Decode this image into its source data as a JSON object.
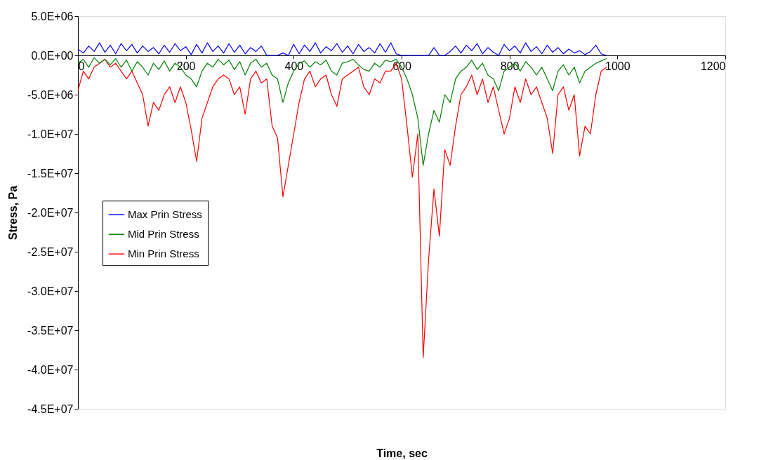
{
  "chart_data": {
    "type": "line",
    "xlabel": "Time, sec",
    "ylabel": "Stress, Pa",
    "x": [
      0,
      10,
      20,
      30,
      40,
      50,
      60,
      70,
      80,
      90,
      100,
      110,
      120,
      130,
      140,
      150,
      160,
      170,
      180,
      190,
      200,
      210,
      220,
      230,
      240,
      250,
      260,
      270,
      280,
      290,
      300,
      310,
      320,
      330,
      340,
      350,
      360,
      370,
      380,
      390,
      400,
      410,
      420,
      430,
      440,
      450,
      460,
      470,
      480,
      490,
      500,
      510,
      520,
      530,
      540,
      550,
      560,
      570,
      580,
      590,
      600,
      610,
      620,
      630,
      640,
      650,
      660,
      670,
      680,
      690,
      700,
      710,
      720,
      730,
      740,
      750,
      760,
      770,
      780,
      790,
      800,
      810,
      820,
      830,
      840,
      850,
      860,
      870,
      880,
      890,
      900,
      910,
      920,
      930,
      940,
      950,
      960,
      970,
      980
    ],
    "series": [
      {
        "name": "Max Prin Stress",
        "color": "#0000ff",
        "values": [
          800000.0,
          300000.0,
          1200000.0,
          500000.0,
          1600000.0,
          400000.0,
          1300000.0,
          200000.0,
          1500000.0,
          600000.0,
          1400000.0,
          300000.0,
          1200000.0,
          500000.0,
          1000000.0,
          200000.0,
          1300000.0,
          400000.0,
          1500000.0,
          600000.0,
          1100000.0,
          100000.0,
          1400000.0,
          300000.0,
          1600000.0,
          500000.0,
          1200000.0,
          300000.0,
          1500000.0,
          400000.0,
          1300000.0,
          200000.0,
          1000000.0,
          500000.0,
          1200000.0,
          0,
          0,
          0,
          300000.0,
          0,
          1400000.0,
          200000.0,
          1300000.0,
          500000.0,
          1600000.0,
          300000.0,
          1100000.0,
          600000.0,
          1500000.0,
          400000.0,
          1200000.0,
          200000.0,
          1400000.0,
          500000.0,
          1000000.0,
          300000.0,
          1500000.0,
          400000.0,
          1600000.0,
          200000.0,
          0,
          0,
          0,
          0,
          0,
          0,
          1000000.0,
          0,
          0,
          500000.0,
          1200000.0,
          300000.0,
          1300000.0,
          600000.0,
          1500000.0,
          200000.0,
          1000000.0,
          400000.0,
          0,
          1400000.0,
          600000.0,
          1200000.0,
          300000.0,
          1600000.0,
          500000.0,
          1100000.0,
          200000.0,
          1300000.0,
          400000.0,
          1000000.0,
          200000.0,
          800000.0,
          300000.0,
          600000.0,
          100000.0,
          500000.0,
          1300000.0,
          200000.0,
          0
        ]
      },
      {
        "name": "Mid Prin Stress",
        "color": "#008000",
        "values": [
          -1000000.0,
          -500000.0,
          -1500000.0,
          -300000.0,
          -1000000.0,
          -500000.0,
          -1200000.0,
          -400000.0,
          -1500000.0,
          -600000.0,
          -2000000.0,
          -800000.0,
          -1500000.0,
          -2500000.0,
          -1000000.0,
          -1800000.0,
          -700000.0,
          -2000000.0,
          -1000000.0,
          -1500000.0,
          -2500000.0,
          -3000000.0,
          -4000000.0,
          -2000000.0,
          -1000000.0,
          -1500000.0,
          -500000.0,
          -1200000.0,
          -600000.0,
          -1800000.0,
          -800000.0,
          -2500000.0,
          -1000000.0,
          -500000.0,
          -1500000.0,
          -1000000.0,
          -2500000.0,
          -3000000.0,
          -6000000.0,
          -3500000.0,
          -2000000.0,
          -1000000.0,
          -700000.0,
          -1500000.0,
          -800000.0,
          -1200000.0,
          -600000.0,
          -2000000.0,
          -2500000.0,
          -1000000.0,
          -800000.0,
          -500000.0,
          -1200000.0,
          -1800000.0,
          -2000000.0,
          -1000000.0,
          -1500000.0,
          -600000.0,
          -800000.0,
          -500000.0,
          -1500000.0,
          -3000000.0,
          -5000000.0,
          -8000000.0,
          -14000000.0,
          -10000000.0,
          -7000000.0,
          -8500000.0,
          -5000000.0,
          -6000000.0,
          -3000000.0,
          -2000000.0,
          -1500000.0,
          -600000.0,
          -1800000.0,
          -1000000.0,
          -2500000.0,
          -3000000.0,
          -4500000.0,
          -2000000.0,
          -1500000.0,
          -1000000.0,
          -2000000.0,
          -800000.0,
          -1500000.0,
          -2500000.0,
          -1500000.0,
          -3000000.0,
          -4500000.0,
          -2000000.0,
          -1200000.0,
          -2500000.0,
          -1500000.0,
          -3500000.0,
          -2000000.0,
          -1500000.0,
          -1000000.0,
          -700000.0,
          -400000.0
        ]
      },
      {
        "name": "Min Prin Stress",
        "color": "#ff0000",
        "values": [
          -4500000.0,
          -2000000.0,
          -3000000.0,
          -1500000.0,
          -1000000.0,
          -500000.0,
          -1500000.0,
          -1000000.0,
          -2000000.0,
          -3000000.0,
          -2000000.0,
          -3500000.0,
          -5000000.0,
          -9000000.0,
          -6000000.0,
          -7000000.0,
          -5000000.0,
          -4000000.0,
          -6000000.0,
          -4000000.0,
          -6000000.0,
          -9500000.0,
          -13500000.0,
          -8000000.0,
          -6000000.0,
          -4000000.0,
          -3000000.0,
          -2500000.0,
          -3000000.0,
          -5000000.0,
          -4000000.0,
          -7500000.0,
          -3000000.0,
          -2000000.0,
          -3500000.0,
          -3000000.0,
          -9000000.0,
          -10500000.0,
          -18000000.0,
          -14000000.0,
          -10000000.0,
          -6000000.0,
          -3000000.0,
          -2000000.0,
          -4000000.0,
          -3000000.0,
          -2500000.0,
          -5000000.0,
          -6500000.0,
          -3000000.0,
          -2500000.0,
          -2000000.0,
          -1500000.0,
          -4000000.0,
          -5000000.0,
          -3000000.0,
          -3500000.0,
          -2000000.0,
          -2000000.0,
          -1000000.0,
          -3000000.0,
          -9000000.0,
          -15500000.0,
          -10000000.0,
          -38500000.0,
          -26000000.0,
          -17000000.0,
          -23000000.0,
          -12000000.0,
          -14000000.0,
          -9000000.0,
          -5000000.0,
          -4000000.0,
          -2500000.0,
          -5000000.0,
          -3000000.0,
          -6000000.0,
          -4000000.0,
          -7000000.0,
          -10000000.0,
          -8000000.0,
          -4000000.0,
          -6000000.0,
          -3000000.0,
          -5000000.0,
          -4000000.0,
          -6000000.0,
          -8000000.0,
          -12500000.0,
          -5000000.0,
          -4000000.0,
          -7000000.0,
          -5000000.0,
          -12800000.0,
          -9000000.0,
          -10000000.0,
          -5000000.0,
          -2000000.0,
          -1500000.0
        ]
      }
    ],
    "xlim": [
      0,
      1200
    ],
    "xticks": [
      0,
      200,
      400,
      600,
      800,
      1000,
      1200
    ],
    "ylim": [
      -45000000,
      5000000
    ],
    "yticks": [
      {
        "value": 5000000,
        "label": "5.0E+06"
      },
      {
        "value": 0,
        "label": "0.0E+00"
      },
      {
        "value": -5000000,
        "label": "-5.0E+06"
      },
      {
        "value": -10000000,
        "label": "-1.0E+07"
      },
      {
        "value": -15000000,
        "label": "-1.5E+07"
      },
      {
        "value": -20000000,
        "label": "-2.0E+07"
      },
      {
        "value": -25000000,
        "label": "-2.5E+07"
      },
      {
        "value": -30000000,
        "label": "-3.0E+07"
      },
      {
        "value": -35000000,
        "label": "-3.5E+07"
      },
      {
        "value": -40000000,
        "label": "-4.0E+07"
      },
      {
        "value": -45000000,
        "label": "-4.5E+07"
      }
    ],
    "grid": false,
    "legend": "left",
    "marker": "none",
    "line_style": "solid"
  }
}
